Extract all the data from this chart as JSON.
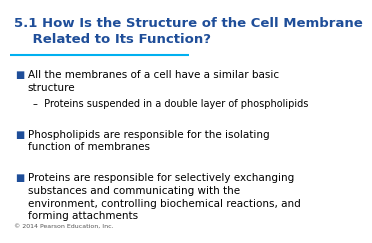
{
  "title_line1": "5.1 How Is the Structure of the Cell Membrane",
  "title_line2": "    Related to Its Function?",
  "title_color": "#1F4E99",
  "title_fontsize": 9.5,
  "separator_color": "#00B0F0",
  "bg_color": "#FFFFFF",
  "bullet_color": "#1F4E99",
  "bullet_char": "■",
  "body_color": "#000000",
  "body_fontsize": 7.5,
  "copyright": "© 2014 Pearson Education, Inc.",
  "copyright_fontsize": 4.5,
  "bullets": [
    {
      "text": "All the membranes of a cell have a similar basic\nstructure",
      "indent": 0
    },
    {
      "text": "–  Proteins suspended in a double layer of phospholipids",
      "indent": 1
    },
    {
      "text": "Phospholipids are responsible for the isolating\nfunction of membranes",
      "indent": 0
    },
    {
      "text": "Proteins are responsible for selectively exchanging\nsubstances and communicating with the\nenvironment, controlling biochemical reactions, and\nforming attachments",
      "indent": 0
    }
  ]
}
